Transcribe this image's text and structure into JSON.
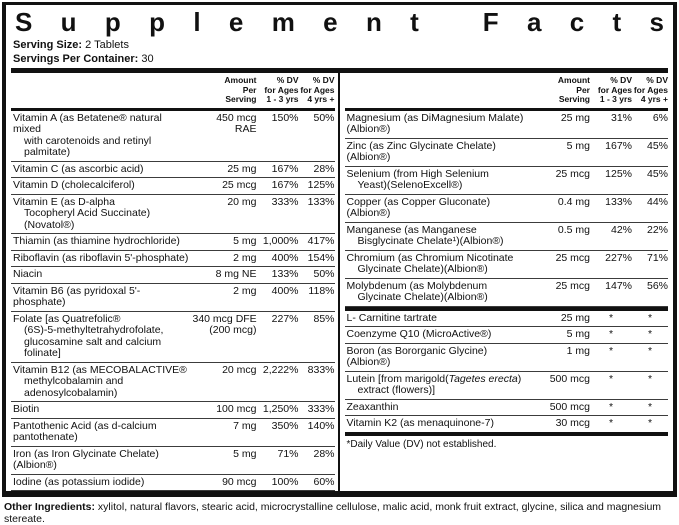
{
  "title": "Supplement Facts",
  "serving": {
    "size_label": "Serving Size:",
    "size_value": "2 Tablets",
    "container_label": "Servings Per Container:",
    "container_value": "30"
  },
  "columns": {
    "amount": [
      "Amount",
      "Per",
      "Serving"
    ],
    "dv1": [
      "% DV",
      "for Ages",
      "1 - 3  yrs"
    ],
    "dv2": [
      "% DV",
      "for Ages",
      "4 yrs +"
    ]
  },
  "left_rows": [
    {
      "name_lines": [
        "Vitamin A (as Betatene® natural mixed",
        "with carotenoids and retinyl palmitate)"
      ],
      "amount_lines": [
        "450 mcg",
        "RAE"
      ],
      "dv1": "150%",
      "dv2": "50%"
    },
    {
      "name_lines": [
        "Vitamin C (as ascorbic acid)"
      ],
      "amount_lines": [
        "25 mg"
      ],
      "dv1": "167%",
      "dv2": "28%"
    },
    {
      "name_lines": [
        "Vitamin D (cholecalciferol)"
      ],
      "amount_lines": [
        "25 mcg"
      ],
      "dv1": "167%",
      "dv2": "125%"
    },
    {
      "name_lines": [
        "Vitamin E (as D-alpha",
        "Tocopheryl Acid Succinate)(Novatol®)"
      ],
      "amount_lines": [
        "20 mg"
      ],
      "dv1": "333%",
      "dv2": "133%"
    },
    {
      "name_lines": [
        "Thiamin (as thiamine hydrochloride)"
      ],
      "amount_lines": [
        "5 mg"
      ],
      "dv1": "1,000%",
      "dv2": "417%"
    },
    {
      "name_lines": [
        "Riboflavin (as riboflavin 5'-phosphate)"
      ],
      "amount_lines": [
        "2 mg"
      ],
      "dv1": "400%",
      "dv2": "154%"
    },
    {
      "name_lines": [
        "Niacin"
      ],
      "amount_lines": [
        "8 mg NE"
      ],
      "dv1": "133%",
      "dv2": "50%"
    },
    {
      "name_lines": [
        "Vitamin B6 (as pyridoxal 5'-phosphate)"
      ],
      "amount_lines": [
        "2 mg"
      ],
      "dv1": "400%",
      "dv2": "118%"
    },
    {
      "name_lines": [
        "Folate [as Quatrefolic®",
        "(6S)-5-methyltetrahydrofolate,",
        "glucosamine salt and calcium folinate]"
      ],
      "amount_lines": [
        "340 mcg DFE",
        "(200 mcg)"
      ],
      "dv1": "227%",
      "dv2": "85%"
    },
    {
      "name_lines": [
        "Vitamin B12 (as MECOBALACTIVE®",
        "methylcobalamin and adenosylcobalamin)"
      ],
      "amount_lines": [
        "20 mcg"
      ],
      "dv1": "2,222%",
      "dv2": "833%"
    },
    {
      "name_lines": [
        "Biotin"
      ],
      "amount_lines": [
        "100 mcg"
      ],
      "dv1": "1,250%",
      "dv2": "333%"
    },
    {
      "name_lines": [
        "Pantothenic Acid (as d-calcium pantothenate)"
      ],
      "amount_lines": [
        "7 mg"
      ],
      "dv1": "350%",
      "dv2": "140%"
    },
    {
      "name_lines": [
        "Iron (as Iron Glycinate Chelate)(Albion®)"
      ],
      "amount_lines": [
        "5 mg"
      ],
      "dv1": "71%",
      "dv2": "28%"
    },
    {
      "name_lines": [
        "Iodine (as potassium iodide)"
      ],
      "amount_lines": [
        "90 mcg"
      ],
      "dv1": "100%",
      "dv2": "60%"
    }
  ],
  "right_rows_minerals": [
    {
      "name_lines": [
        "Magnesium (as DiMagnesium Malate)(Albion®)"
      ],
      "amount_lines": [
        "25 mg"
      ],
      "dv1": "31%",
      "dv2": "6%"
    },
    {
      "name_lines": [
        "Zinc (as Zinc Glycinate Chelate)(Albion®)"
      ],
      "amount_lines": [
        "5 mg"
      ],
      "dv1": "167%",
      "dv2": "45%"
    },
    {
      "name_lines": [
        "Selenium (from High Selenium",
        "Yeast)(SelenoExcell®)"
      ],
      "amount_lines": [
        "25 mcg"
      ],
      "dv1": "125%",
      "dv2": "45%"
    },
    {
      "name_lines": [
        "Copper (as Copper Gluconate)(Albion®)"
      ],
      "amount_lines": [
        "0.4 mg"
      ],
      "dv1": "133%",
      "dv2": "44%"
    },
    {
      "name_lines": [
        "Manganese (as Manganese",
        "Bisglycinate Chelate¹)(Albion®)"
      ],
      "amount_lines": [
        "0.5 mg"
      ],
      "dv1": "42%",
      "dv2": "22%"
    },
    {
      "name_lines": [
        "Chromium (as Chromium Nicotinate",
        "Glycinate Chelate)(Albion®)"
      ],
      "amount_lines": [
        "25 mcg"
      ],
      "dv1": "227%",
      "dv2": "71%"
    },
    {
      "name_lines": [
        "Molybdenum (as Molybdenum",
        "Glycinate Chelate)(Albion®)"
      ],
      "amount_lines": [
        "25 mcg"
      ],
      "dv1": "147%",
      "dv2": "56%"
    }
  ],
  "right_rows_other": [
    {
      "name_lines": [
        "L- Carnitine tartrate"
      ],
      "amount_lines": [
        "25 mg"
      ],
      "dv1": "*",
      "dv2": "*"
    },
    {
      "name_lines": [
        "Coenzyme Q10 (MicroActive®)"
      ],
      "amount_lines": [
        "5 mg"
      ],
      "dv1": "*",
      "dv2": "*"
    },
    {
      "name_lines": [
        "Boron (as Bororganic Glycine)(Albion®)"
      ],
      "amount_lines": [
        "1 mg"
      ],
      "dv1": "*",
      "dv2": "*"
    },
    {
      "name_lines": [
        "Lutein [from marigold(Tagetes erecta)",
        "extract (flowers)]"
      ],
      "amount_lines": [
        "500 mcg"
      ],
      "dv1": "*",
      "dv2": "*",
      "italic": "Tagetes erecta"
    },
    {
      "name_lines": [
        "Zeaxanthin"
      ],
      "amount_lines": [
        "500 mcg"
      ],
      "dv1": "*",
      "dv2": "*"
    },
    {
      "name_lines": [
        "Vitamin K2 (as menaquinone-7)"
      ],
      "amount_lines": [
        "30 mcg"
      ],
      "dv1": "*",
      "dv2": "*"
    }
  ],
  "footnote": "*Daily Value (DV) not established.",
  "other_ingredients": {
    "label": "Other Ingredients:",
    "text": " xylitol, natural flavors, stearic acid, microcrystalline cellulose, malic acid, monk fruit extract, glycine, silica and magnesium stereate."
  },
  "colors": {
    "ink": "#111111",
    "paper": "#ffffff"
  }
}
